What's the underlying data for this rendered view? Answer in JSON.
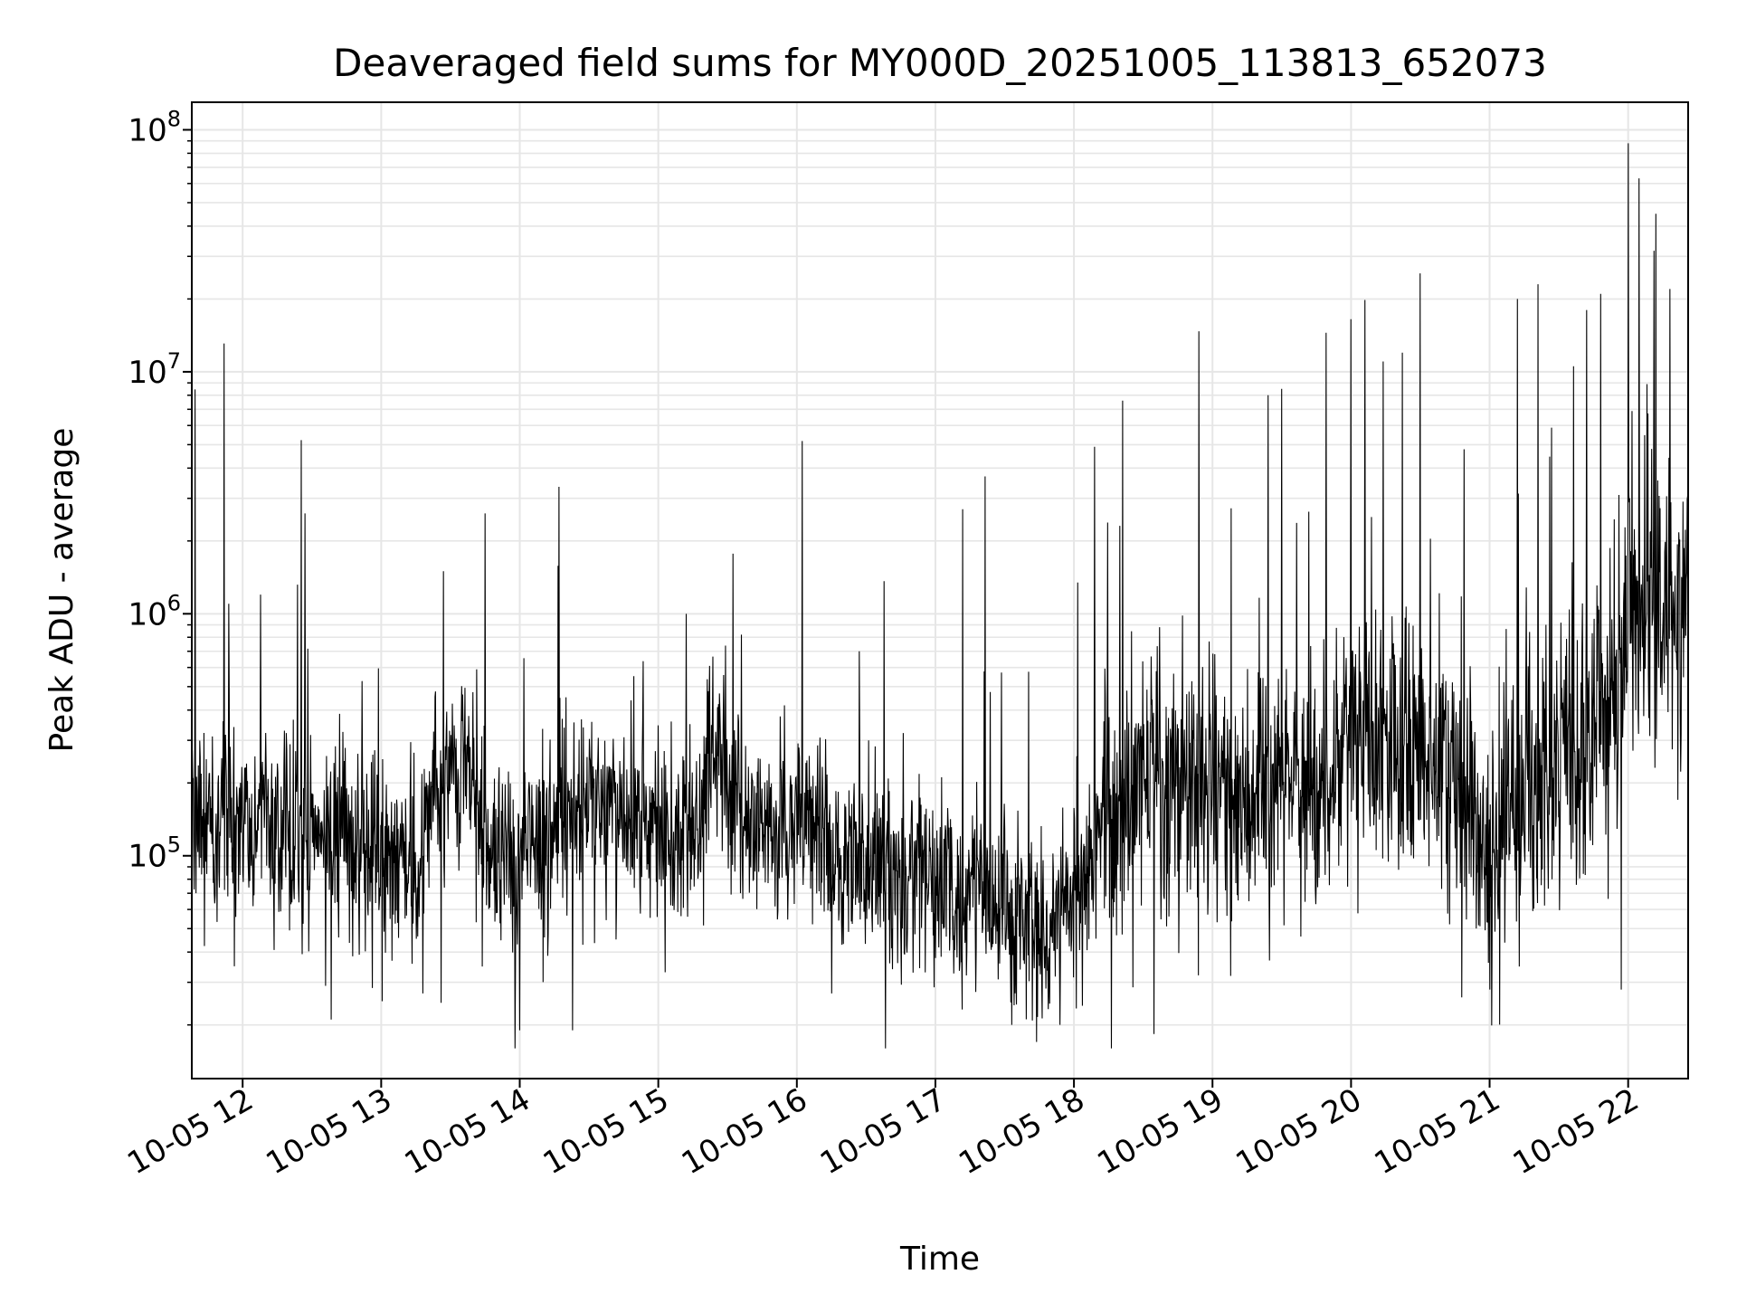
{
  "chart_data": {
    "type": "line",
    "title": "Deaveraged field sums for MY000D_20251005_113813_652073",
    "xlabel": "Time",
    "ylabel": "Peak ADU - average",
    "x_tick_labels": [
      "10-05 12",
      "10-05 13",
      "10-05 14",
      "10-05 15",
      "10-05 16",
      "10-05 17",
      "10-05 18",
      "10-05 19",
      "10-05 20",
      "10-05 21",
      "10-05 22"
    ],
    "x_ticks_hours": [
      12,
      13,
      14,
      15,
      16,
      17,
      18,
      19,
      20,
      21,
      22
    ],
    "xlim_hours": [
      11.633,
      22.433
    ],
    "yscale": "log",
    "ylim": [
      12000,
      130000000
    ],
    "y_major_ticks": [
      {
        "value": 100000,
        "base": "10",
        "exp": "5"
      },
      {
        "value": 1000000,
        "base": "10",
        "exp": "6"
      },
      {
        "value": 10000000,
        "base": "10",
        "exp": "7"
      },
      {
        "value": 100000000,
        "base": "10",
        "exp": "8"
      }
    ],
    "grid": true,
    "line_color": "#000000",
    "grid_color": "#e6e6e6",
    "series": [
      {
        "name": "Peak ADU - average",
        "x_hours": [
          11.633,
          11.75,
          11.9,
          12.0,
          12.25,
          12.5,
          12.75,
          13.0,
          13.25,
          13.5,
          13.6,
          13.75,
          14.0,
          14.25,
          14.5,
          14.75,
          15.0,
          15.25,
          15.4,
          15.5,
          15.75,
          16.0,
          16.25,
          16.5,
          16.75,
          17.0,
          17.25,
          17.5,
          17.75,
          18.0,
          18.25,
          18.5,
          18.75,
          19.0,
          19.25,
          19.5,
          19.75,
          20.0,
          20.25,
          20.5,
          20.75,
          21.0,
          21.25,
          21.5,
          21.75,
          21.85,
          22.0,
          22.15,
          22.3,
          22.433
        ],
        "baseline": [
          150000,
          130000,
          150000,
          140000,
          130000,
          120000,
          110000,
          100000,
          90000,
          250000,
          250000,
          100000,
          100000,
          140000,
          150000,
          140000,
          130000,
          120000,
          300000,
          180000,
          130000,
          140000,
          110000,
          90000,
          80000,
          80000,
          75000,
          55000,
          45000,
          70000,
          150000,
          200000,
          210000,
          200000,
          180000,
          200000,
          200000,
          350000,
          300000,
          250000,
          220000,
          100000,
          200000,
          240000,
          280000,
          350000,
          1200000,
          1500000,
          1000000,
          1300000
        ],
        "spikes": [
          {
            "x_hour": 11.9,
            "value": 1100000
          },
          {
            "x_hour": 12.13,
            "value": 1200000
          },
          {
            "x_hour": 12.45,
            "value": 2600000
          },
          {
            "x_hour": 13.45,
            "value": 1500000
          },
          {
            "x_hour": 13.75,
            "value": 2600000
          },
          {
            "x_hour": 15.2,
            "value": 1000000
          },
          {
            "x_hour": 16.45,
            "value": 700000
          },
          {
            "x_hour": 18.15,
            "value": 4900000
          },
          {
            "x_hour": 18.35,
            "value": 7600000
          },
          {
            "x_hour": 18.9,
            "value": 14700000
          },
          {
            "x_hour": 19.4,
            "value": 8000000
          },
          {
            "x_hour": 19.5,
            "value": 8500000
          },
          {
            "x_hour": 19.82,
            "value": 14500000
          },
          {
            "x_hour": 20.0,
            "value": 16500000
          },
          {
            "x_hour": 20.1,
            "value": 19800000
          },
          {
            "x_hour": 20.37,
            "value": 12000000
          },
          {
            "x_hour": 20.5,
            "value": 25500000
          },
          {
            "x_hour": 21.2,
            "value": 20000000
          },
          {
            "x_hour": 21.35,
            "value": 23000000
          },
          {
            "x_hour": 21.7,
            "value": 18000000
          },
          {
            "x_hour": 21.8,
            "value": 21000000
          },
          {
            "x_hour": 22.0,
            "value": 88000000
          },
          {
            "x_hour": 22.08,
            "value": 63000000
          },
          {
            "x_hour": 22.2,
            "value": 45000000
          },
          {
            "x_hour": 22.3,
            "value": 22000000
          }
        ],
        "dips": [
          {
            "x_hour": 12.6,
            "value": 29000
          },
          {
            "x_hour": 13.3,
            "value": 27000
          },
          {
            "x_hour": 14.0,
            "value": 19000
          },
          {
            "x_hour": 14.38,
            "value": 19000
          },
          {
            "x_hour": 15.05,
            "value": 33000
          },
          {
            "x_hour": 16.25,
            "value": 27000
          },
          {
            "x_hour": 17.55,
            "value": 20000
          },
          {
            "x_hour": 17.73,
            "value": 17000
          },
          {
            "x_hour": 17.9,
            "value": 20000
          },
          {
            "x_hour": 18.06,
            "value": 24000
          },
          {
            "x_hour": 20.8,
            "value": 26000
          },
          {
            "x_hour": 21.0,
            "value": 28000
          },
          {
            "x_hour": 21.95,
            "value": 28000
          }
        ]
      }
    ]
  }
}
